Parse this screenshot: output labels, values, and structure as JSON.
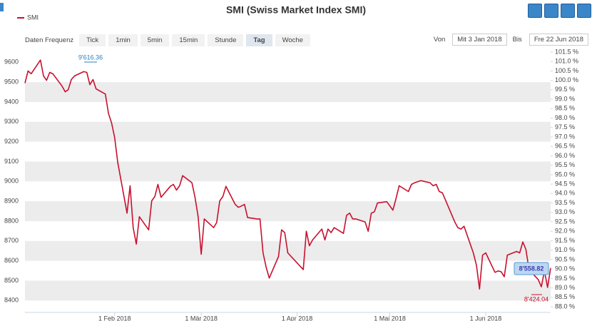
{
  "chart_data": {
    "type": "line",
    "title": "SMI (Swiss Market Index SMI)",
    "x": [
      "2018-01-03",
      "2018-01-04",
      "2018-01-05",
      "2018-01-08",
      "2018-01-09",
      "2018-01-10",
      "2018-01-11",
      "2018-01-12",
      "2018-01-15",
      "2018-01-16",
      "2018-01-17",
      "2018-01-18",
      "2018-01-19",
      "2018-01-22",
      "2018-01-23",
      "2018-01-24",
      "2018-01-25",
      "2018-01-26",
      "2018-01-29",
      "2018-01-30",
      "2018-01-31",
      "2018-02-01",
      "2018-02-02",
      "2018-02-05",
      "2018-02-06",
      "2018-02-07",
      "2018-02-08",
      "2018-02-09",
      "2018-02-12",
      "2018-02-13",
      "2018-02-14",
      "2018-02-15",
      "2018-02-16",
      "2018-02-19",
      "2018-02-20",
      "2018-02-21",
      "2018-02-22",
      "2018-02-23",
      "2018-02-26",
      "2018-02-27",
      "2018-02-28",
      "2018-03-01",
      "2018-03-02",
      "2018-03-05",
      "2018-03-06",
      "2018-03-07",
      "2018-03-08",
      "2018-03-09",
      "2018-03-12",
      "2018-03-13",
      "2018-03-14",
      "2018-03-15",
      "2018-03-16",
      "2018-03-19",
      "2018-03-20",
      "2018-03-21",
      "2018-03-22",
      "2018-03-23",
      "2018-03-26",
      "2018-03-27",
      "2018-03-28",
      "2018-03-29",
      "2018-04-03",
      "2018-04-04",
      "2018-04-05",
      "2018-04-06",
      "2018-04-09",
      "2018-04-10",
      "2018-04-11",
      "2018-04-12",
      "2018-04-13",
      "2018-04-16",
      "2018-04-17",
      "2018-04-18",
      "2018-04-19",
      "2018-04-20",
      "2018-04-23",
      "2018-04-24",
      "2018-04-25",
      "2018-04-26",
      "2018-04-27",
      "2018-04-30",
      "2018-05-02",
      "2018-05-03",
      "2018-05-04",
      "2018-05-07",
      "2018-05-08",
      "2018-05-09",
      "2018-05-11",
      "2018-05-14",
      "2018-05-15",
      "2018-05-16",
      "2018-05-17",
      "2018-05-18",
      "2018-05-22",
      "2018-05-23",
      "2018-05-24",
      "2018-05-25",
      "2018-05-28",
      "2018-05-29",
      "2018-05-30",
      "2018-05-31",
      "2018-06-01",
      "2018-06-04",
      "2018-06-05",
      "2018-06-06",
      "2018-06-07",
      "2018-06-08",
      "2018-06-11",
      "2018-06-12",
      "2018-06-13",
      "2018-06-14",
      "2018-06-15",
      "2018-06-18",
      "2018-06-19",
      "2018-06-20",
      "2018-06-21",
      "2018-06-22"
    ],
    "series": [
      {
        "name": "SMI",
        "color": "#c8102e",
        "values": [
          9495,
          9556,
          9542,
          9611,
          9531,
          9509,
          9549,
          9542,
          9480,
          9451,
          9462,
          9513,
          9531,
          9553,
          9549,
          9487,
          9513,
          9466,
          9440,
          9342,
          9295,
          9222,
          9095,
          8840,
          8978,
          8767,
          8684,
          8822,
          8756,
          8902,
          8924,
          8985,
          8920,
          8975,
          8985,
          8956,
          8978,
          9029,
          8993,
          8920,
          8822,
          8633,
          8811,
          8767,
          8793,
          8902,
          8924,
          8975,
          8884,
          8869,
          8876,
          8884,
          8818,
          8811,
          8811,
          8640,
          8567,
          8513,
          8622,
          8756,
          8742,
          8640,
          8556,
          8749,
          8676,
          8705,
          8760,
          8705,
          8760,
          8742,
          8767,
          8738,
          8829,
          8840,
          8811,
          8811,
          8796,
          8749,
          8840,
          8847,
          8891,
          8898,
          8855,
          8913,
          8978,
          8949,
          8985,
          8993,
          9004,
          8993,
          8978,
          8985,
          8949,
          8942,
          8796,
          8767,
          8760,
          8774,
          8640,
          8578,
          8458,
          8629,
          8640,
          8542,
          8549,
          8545,
          8520,
          8629,
          8647,
          8640,
          8695,
          8658,
          8556,
          8505,
          8469,
          8549,
          8466,
          8564
        ]
      }
    ],
    "xlim": [
      "2018-01-03",
      "2018-06-22"
    ],
    "xticks": [
      {
        "value": "2018-02-01",
        "label": "1 Feb 2018"
      },
      {
        "value": "2018-03-01",
        "label": "1 Mär 2018"
      },
      {
        "value": "2018-04-01",
        "label": "1 Apr 2018"
      },
      {
        "value": "2018-05-01",
        "label": "1 Mai 2018"
      },
      {
        "value": "2018-06-01",
        "label": "1 Jun 2018"
      }
    ],
    "ylim": [
      8340,
      9680
    ],
    "yticks": [
      8400,
      8500,
      8600,
      8700,
      8800,
      8900,
      9000,
      9100,
      9200,
      9300,
      9400,
      9500,
      9600
    ],
    "y2lim": [
      87.7,
      101.8
    ],
    "y2ticks": [
      {
        "value": 88,
        "label": "88.0 %"
      },
      {
        "value": 88.5,
        "label": "88.5 %"
      },
      {
        "value": 89,
        "label": "89.0 %"
      },
      {
        "value": 89.5,
        "label": "89.5 %"
      },
      {
        "value": 90,
        "label": "90.0 %"
      },
      {
        "value": 90.5,
        "label": "90.5 %"
      },
      {
        "value": 91,
        "label": "91.0 %"
      },
      {
        "value": 91.5,
        "label": "91.5 %"
      },
      {
        "value": 92,
        "label": "92.0 %"
      },
      {
        "value": 92.5,
        "label": "92.5 %"
      },
      {
        "value": 93,
        "label": "93.0 %"
      },
      {
        "value": 93.5,
        "label": "93.5 %"
      },
      {
        "value": 94,
        "label": "94.0 %"
      },
      {
        "value": 94.5,
        "label": "94.5 %"
      },
      {
        "value": 95,
        "label": "95.0 %"
      },
      {
        "value": 95.5,
        "label": "95.5 %"
      },
      {
        "value": 96,
        "label": "96.0 %"
      },
      {
        "value": 96.5,
        "label": "96.5 %"
      },
      {
        "value": 97,
        "label": "97.0 %"
      },
      {
        "value": 97.5,
        "label": "97.5 %"
      },
      {
        "value": 98,
        "label": "98.0 %"
      },
      {
        "value": 98.5,
        "label": "98.5 %"
      },
      {
        "value": 99,
        "label": "99.0 %"
      },
      {
        "value": 99.5,
        "label": "99.5 %"
      },
      {
        "value": 100,
        "label": "100.0 %"
      },
      {
        "value": 100.5,
        "label": "100.5 %"
      },
      {
        "value": 101,
        "label": "101.0 %"
      },
      {
        "value": 101.5,
        "label": "101.5 %"
      }
    ],
    "grid": "bands",
    "annotations": {
      "high": "9'616.36",
      "low": "8'424.04",
      "last": "8'558.82"
    }
  },
  "toolbar": {
    "frequency_label": "Daten Frequenz",
    "frequencies": [
      "Tick",
      "1min",
      "5min",
      "15min",
      "Stunde",
      "Tag",
      "Woche"
    ],
    "active_index": 5,
    "from_label": "Von",
    "from": "Mit 3 Jan 2018",
    "to_label": "Bis",
    "to": "Fre 22 Jun 2018"
  }
}
